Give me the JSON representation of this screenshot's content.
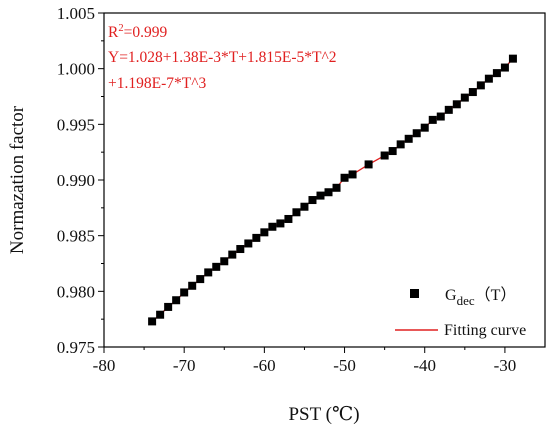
{
  "chart_data": {
    "type": "scatter",
    "xlabel": "PST (℃)",
    "ylabel": "Normazation factor",
    "xlim": [
      -80,
      -25
    ],
    "ylim": [
      0.975,
      1.005
    ],
    "x_ticks": [
      "-80",
      "-70",
      "-60",
      "-50",
      "-40",
      "-30"
    ],
    "y_ticks": [
      "0.975",
      "0.980",
      "0.985",
      "0.990",
      "0.995",
      "1.000",
      "1.005"
    ],
    "grid": false,
    "legend_position": "bottom-right",
    "annotations": {
      "r2_prefix": "R",
      "r2_sup": "2",
      "r2_value": "=0.999",
      "equation_line1": "Y=1.028+1.38E-3*T+1.815E-5*T^2",
      "equation_line2": "+1.198E-7*T^3"
    },
    "series": [
      {
        "name": "G",
        "name_sub": "dec",
        "name_suffix": "（T）",
        "marker": "square",
        "color": "#000000",
        "x": [
          -74,
          -73,
          -72,
          -71,
          -70,
          -69,
          -68,
          -67,
          -66,
          -65,
          -64,
          -63,
          -62,
          -61,
          -60,
          -59,
          -58,
          -57,
          -56,
          -55,
          -54,
          -53,
          -52,
          -51,
          -50,
          -49,
          -47,
          -45,
          -44,
          -43,
          -42,
          -41,
          -40,
          -39,
          -38,
          -37,
          -36,
          -35,
          -34,
          -33,
          -32,
          -31,
          -30,
          -29
        ],
        "y": [
          0.9773,
          0.9779,
          0.9786,
          0.9792,
          0.9799,
          0.9805,
          0.9811,
          0.9817,
          0.9822,
          0.9827,
          0.9833,
          0.9838,
          0.9843,
          0.9848,
          0.9853,
          0.9858,
          0.9861,
          0.9865,
          0.9871,
          0.9876,
          0.9882,
          0.9886,
          0.9889,
          0.9893,
          0.9902,
          0.9905,
          0.9914,
          0.9922,
          0.9926,
          0.9932,
          0.9937,
          0.9942,
          0.9947,
          0.9954,
          0.9957,
          0.9963,
          0.9968,
          0.9974,
          0.9979,
          0.9985,
          0.9991,
          0.9996,
          1.0001,
          1.0009
        ]
      },
      {
        "name": "Fitting curve",
        "type": "line",
        "color": "#e02020",
        "equation": "Y=1.028+1.38E-3*T+1.815E-5*T^2+1.198E-7*T^3"
      }
    ]
  }
}
